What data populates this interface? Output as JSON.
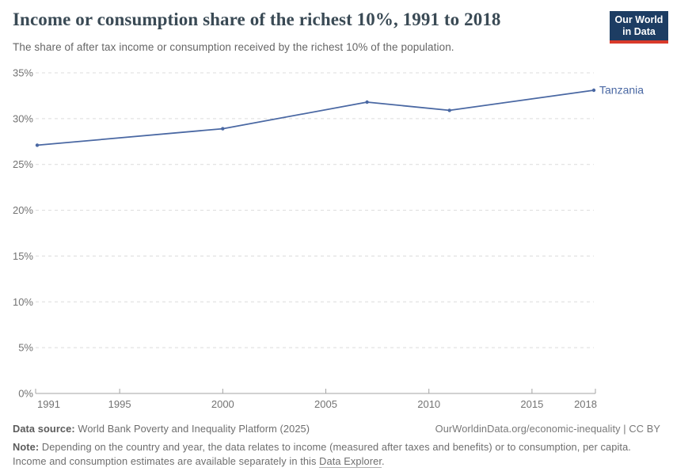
{
  "header": {
    "title": "Income or consumption share of the richest 10%, 1991 to 2018",
    "subtitle": "The share of after tax income or consumption received by the richest 10% of the population.",
    "logo": {
      "line1": "Our World",
      "line2": "in Data",
      "bg_color": "#1d3d63",
      "accent_color": "#d93a2b"
    }
  },
  "chart_data": {
    "type": "line",
    "title": "Income or consumption share of the richest 10%, 1991 to 2018",
    "series": [
      {
        "name": "Tanzania",
        "color": "#4a68a3",
        "x": [
          1991,
          2000,
          2007,
          2011,
          2018
        ],
        "values": [
          27.1,
          28.9,
          31.8,
          30.9,
          33.1
        ]
      }
    ],
    "xlim": [
      1991,
      2018
    ],
    "ylim": [
      0,
      35
    ],
    "x_ticks": [
      1991,
      1995,
      2000,
      2005,
      2010,
      2015,
      2018
    ],
    "y_ticks": [
      0,
      5,
      10,
      15,
      20,
      25,
      30,
      35
    ],
    "y_tick_suffix": "%",
    "grid": "horizontal-dashed",
    "legend_position": "end-of-line-label",
    "end_label": "Tanzania",
    "grid_color": "#dcdcdc",
    "axis_color": "#a3a3a3",
    "tick_label_color": "#737373"
  },
  "footer": {
    "data_source_label": "Data source:",
    "data_source": " World Bank Poverty and Inequality Platform (2025)",
    "attribution": "OurWorldinData.org/economic-inequality | CC BY",
    "note_label": "Note:",
    "note_line1": " Depending on the country and year, the data relates to income (measured after taxes and benefits) or to consumption, per capita.",
    "note_line2_prefix": "Income and consumption estimates are available separately in this ",
    "note_link": "Data Explorer",
    "note_suffix": "."
  }
}
